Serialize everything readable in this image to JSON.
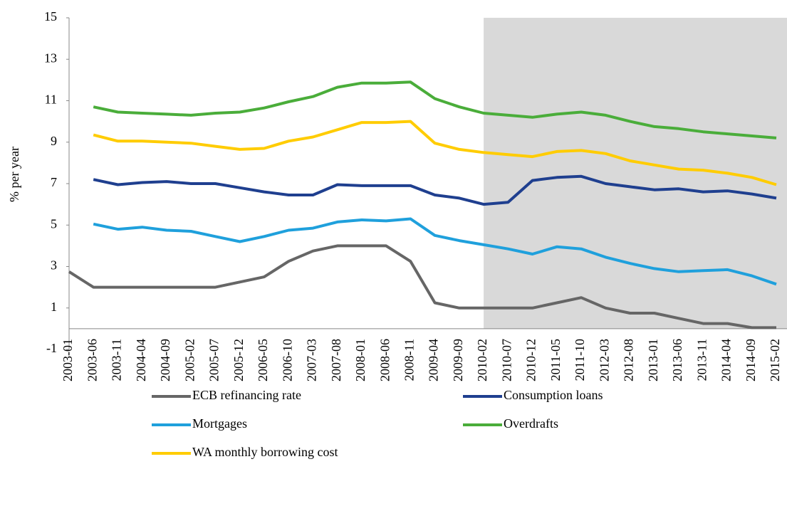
{
  "chart_data": {
    "type": "line",
    "y_label": "% per year",
    "categories": [
      "2003-01",
      "2003-06",
      "2003-11",
      "2004-04",
      "2004-09",
      "2005-02",
      "2005-07",
      "2005-12",
      "2006-05",
      "2006-10",
      "2007-03",
      "2007-08",
      "2008-01",
      "2008-06",
      "2008-11",
      "2009-04",
      "2009-09",
      "2010-02",
      "2010-07",
      "2010-12",
      "2011-05",
      "2011-10",
      "2012-03",
      "2012-08",
      "2013-01",
      "2013-06",
      "2013-11",
      "2014-04",
      "2014-09",
      "2015-02"
    ],
    "series": [
      {
        "name": "ECB refinancing rate",
        "color": "#666666",
        "values": [
          2.75,
          2.0,
          2.0,
          2.0,
          2.0,
          2.0,
          2.0,
          2.25,
          2.5,
          3.25,
          3.75,
          4.0,
          4.0,
          4.0,
          3.25,
          1.25,
          1.0,
          1.0,
          1.0,
          1.0,
          1.25,
          1.5,
          1.0,
          0.75,
          0.75,
          0.5,
          0.25,
          0.25,
          0.05,
          0.05
        ]
      },
      {
        "name": "Consumption loans",
        "color": "#1f3f8f",
        "values": [
          null,
          7.2,
          6.95,
          7.05,
          7.1,
          7.0,
          7.0,
          6.8,
          6.6,
          6.45,
          6.45,
          6.95,
          6.9,
          6.9,
          6.9,
          6.45,
          6.3,
          6.0,
          6.1,
          7.15,
          7.3,
          7.35,
          7.0,
          6.85,
          6.7,
          6.75,
          6.6,
          6.65,
          6.5,
          6.3
        ]
      },
      {
        "name": "Mortgages",
        "color": "#1fa0dc",
        "values": [
          null,
          5.05,
          4.8,
          4.9,
          4.75,
          4.7,
          4.45,
          4.2,
          4.45,
          4.75,
          4.85,
          5.15,
          5.25,
          5.2,
          5.3,
          4.5,
          4.25,
          4.05,
          3.85,
          3.6,
          3.95,
          3.85,
          3.45,
          3.15,
          2.9,
          2.75,
          2.8,
          2.85,
          2.55,
          2.15
        ]
      },
      {
        "name": "Overdrafts",
        "color": "#4aad3a",
        "values": [
          null,
          10.7,
          10.45,
          10.4,
          10.35,
          10.3,
          10.4,
          10.45,
          10.65,
          10.95,
          11.2,
          11.65,
          11.85,
          11.85,
          11.9,
          11.1,
          10.7,
          10.4,
          10.3,
          10.2,
          10.35,
          10.45,
          10.3,
          10.0,
          9.75,
          9.65,
          9.5,
          9.4,
          9.3,
          9.2
        ]
      },
      {
        "name": "WA monthly borrowing cost",
        "color": "#ffcc00",
        "values": [
          null,
          9.35,
          9.05,
          9.05,
          9.0,
          8.95,
          8.8,
          8.65,
          8.7,
          9.05,
          9.25,
          9.6,
          9.95,
          9.95,
          10.0,
          8.95,
          8.65,
          8.5,
          8.4,
          8.3,
          8.55,
          8.6,
          8.45,
          8.1,
          7.9,
          7.7,
          7.65,
          7.5,
          7.3,
          6.95
        ]
      }
    ],
    "shade_from": "2010-02",
    "shade_color": "#d9d9d9",
    "ylim": [
      -1,
      15
    ],
    "yticks": [
      -1,
      1,
      3,
      5,
      7,
      9,
      11,
      13,
      15
    ]
  }
}
